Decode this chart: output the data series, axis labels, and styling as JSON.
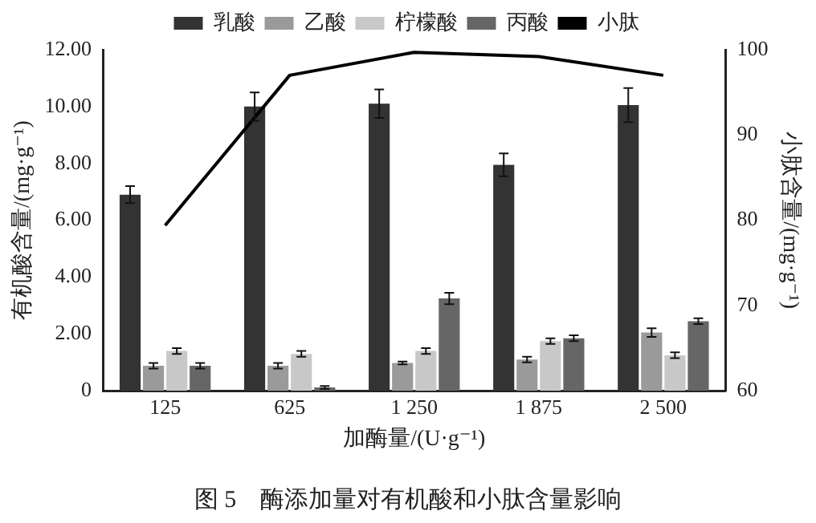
{
  "chart_data": {
    "type": "bar",
    "categories": [
      "125",
      "625",
      "1 250",
      "1 875",
      "2 500"
    ],
    "xlabel": "加酶量/(U·g⁻¹)",
    "ylabel": "有机酸含量/(mg·g⁻¹)",
    "y2label": "小肽含量/(mg·g⁻¹)",
    "series": [
      {
        "name": "乳酸",
        "color": "#333333",
        "values": [
          6.9,
          10.0,
          10.1,
          7.95,
          10.05
        ],
        "errors": [
          0.3,
          0.5,
          0.5,
          0.4,
          0.6
        ]
      },
      {
        "name": "乙酸",
        "color": "#9a9a9a",
        "values": [
          0.88,
          0.88,
          0.98,
          1.1,
          2.05
        ],
        "errors": [
          0.1,
          0.1,
          0.05,
          0.1,
          0.15
        ]
      },
      {
        "name": "柠檬酸",
        "color": "#c8c8c8",
        "values": [
          1.4,
          1.3,
          1.4,
          1.75,
          1.25
        ],
        "errors": [
          0.1,
          0.1,
          0.1,
          0.1,
          0.1
        ]
      },
      {
        "name": "丙酸",
        "color": "#666666",
        "values": [
          0.88,
          0.12,
          3.25,
          1.85,
          2.45
        ],
        "errors": [
          0.1,
          0.05,
          0.2,
          0.1,
          0.1
        ]
      },
      {
        "name": "小肽",
        "type": "line",
        "axis": "y2",
        "color": "#000000",
        "values": [
          79.4,
          97.0,
          99.7,
          99.2,
          97.0
        ]
      }
    ],
    "ylim": [
      0,
      12
    ],
    "yticks": [
      {
        "value": 0,
        "label": "0"
      },
      {
        "value": 2,
        "label": "2.00"
      },
      {
        "value": 4,
        "label": "4.00"
      },
      {
        "value": 6,
        "label": "6.00"
      },
      {
        "value": 8,
        "label": "8.00"
      },
      {
        "value": 10,
        "label": "10.00"
      },
      {
        "value": 12,
        "label": "12.00"
      }
    ],
    "y2lim": [
      60,
      100
    ],
    "y2ticks": [
      60,
      70,
      80,
      90,
      100
    ],
    "grid": false,
    "legend": "top",
    "marker": "none",
    "annotations": [
      "图 5　酶添加量对有机酸和小肽含量影响"
    ]
  }
}
